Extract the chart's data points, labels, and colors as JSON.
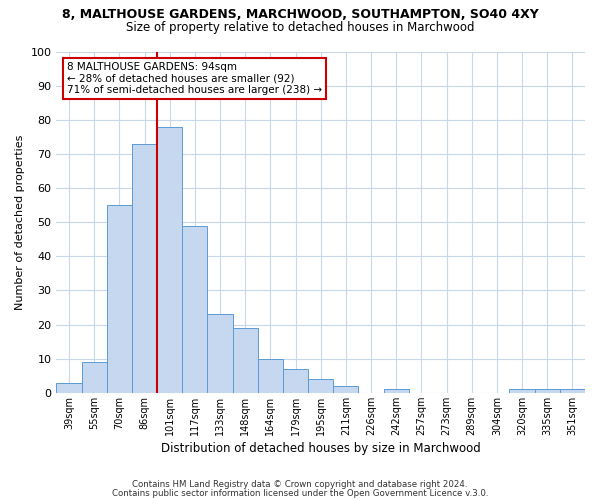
{
  "title": "8, MALTHOUSE GARDENS, MARCHWOOD, SOUTHAMPTON, SO40 4XY",
  "subtitle": "Size of property relative to detached houses in Marchwood",
  "xlabel": "Distribution of detached houses by size in Marchwood",
  "ylabel": "Number of detached properties",
  "categories": [
    "39sqm",
    "55sqm",
    "70sqm",
    "86sqm",
    "101sqm",
    "117sqm",
    "133sqm",
    "148sqm",
    "164sqm",
    "179sqm",
    "195sqm",
    "211sqm",
    "226sqm",
    "242sqm",
    "257sqm",
    "273sqm",
    "289sqm",
    "304sqm",
    "320sqm",
    "335sqm",
    "351sqm"
  ],
  "values": [
    3,
    9,
    55,
    73,
    78,
    49,
    23,
    19,
    10,
    7,
    4,
    2,
    0,
    1,
    0,
    0,
    0,
    0,
    1,
    1,
    1
  ],
  "bar_color": "#c5d8f0",
  "bar_edge_color": "#5b9bd5",
  "vline_x_index": 3,
  "vline_color": "#cc0000",
  "ylim": [
    0,
    100
  ],
  "yticks": [
    0,
    10,
    20,
    30,
    40,
    50,
    60,
    70,
    80,
    90,
    100
  ],
  "annotation_box_text": [
    "8 MALTHOUSE GARDENS: 94sqm",
    "← 28% of detached houses are smaller (92)",
    "71% of semi-detached houses are larger (238) →"
  ],
  "footer_line1": "Contains HM Land Registry data © Crown copyright and database right 2024.",
  "footer_line2": "Contains public sector information licensed under the Open Government Licence v.3.0.",
  "background_color": "#ffffff",
  "grid_color": "#c8d8e8"
}
